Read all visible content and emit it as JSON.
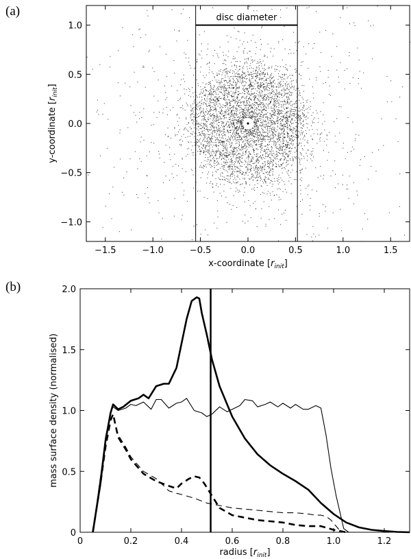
{
  "chart_data": [
    {
      "panel_label": "(a)",
      "type": "scatter",
      "xlabel": "x-coordinate",
      "ylabel": "y-coordinate",
      "unit_main": "r",
      "unit_sub": "init",
      "xlim": [
        -1.7,
        1.7
      ],
      "ylim": [
        -1.2,
        1.2
      ],
      "xticks": [
        -1.5,
        -1.0,
        -0.5,
        0.0,
        0.5,
        1.0,
        1.5
      ],
      "xtick_labels": [
        "−1.5",
        "−1.0",
        "−0.5",
        "0.0",
        "0.5",
        "1.0",
        "1.5"
      ],
      "yticks": [
        -1.0,
        -0.5,
        0.0,
        0.5,
        1.0
      ],
      "ytick_labels": [
        "−1.0",
        "−0.5",
        "0.0",
        "0.5",
        "1.0"
      ],
      "vertical_lines_x": [
        -0.55,
        0.52
      ],
      "annotation": {
        "text": "disc diameter",
        "x_from": -0.55,
        "x_to": 0.52,
        "y": 1.0
      },
      "distribution": {
        "ring_radius": 0.45,
        "ring_width": 0.12,
        "core_width": 0.35,
        "halo_width": 0.9,
        "n_points": 5200
      }
    },
    {
      "panel_label": "(b)",
      "type": "line",
      "xlabel": "radius",
      "ylabel": "mass surface density (normalised)",
      "unit_main": "r",
      "unit_sub": "init",
      "xlim": [
        0.0,
        1.3
      ],
      "ylim": [
        0.0,
        2.0
      ],
      "xticks": [
        0.0,
        0.2,
        0.4,
        0.6,
        0.8,
        1.0,
        1.2
      ],
      "xtick_labels": [
        "0",
        "0.2",
        "0.4",
        "0.6",
        "0.8",
        "1.0",
        "1.2"
      ],
      "yticks": [
        0.0,
        0.5,
        1.0,
        1.5,
        2.0
      ],
      "ytick_labels": [
        "0",
        "0.5",
        "1.0",
        "1.5",
        "2.0"
      ],
      "vertical_line_x": 0.515,
      "series": [
        {
          "style": "thick-solid",
          "x": [
            0.05,
            0.08,
            0.1,
            0.12,
            0.13,
            0.15,
            0.17,
            0.2,
            0.23,
            0.25,
            0.27,
            0.3,
            0.33,
            0.35,
            0.38,
            0.4,
            0.42,
            0.44,
            0.46,
            0.47,
            0.48,
            0.5,
            0.52,
            0.55,
            0.6,
            0.65,
            0.7,
            0.75,
            0.8,
            0.85,
            0.9,
            0.95,
            1.0,
            1.05,
            1.1,
            1.15,
            1.2,
            1.25,
            1.3
          ],
          "y": [
            0.0,
            0.4,
            0.75,
            0.98,
            1.05,
            1.01,
            1.03,
            1.08,
            1.1,
            1.13,
            1.1,
            1.2,
            1.22,
            1.22,
            1.35,
            1.55,
            1.75,
            1.9,
            1.93,
            1.92,
            1.8,
            1.62,
            1.42,
            1.2,
            0.95,
            0.77,
            0.64,
            0.55,
            0.48,
            0.42,
            0.35,
            0.24,
            0.15,
            0.08,
            0.04,
            0.02,
            0.01,
            0.003,
            0.0
          ]
        },
        {
          "style": "thin-solid",
          "x": [
            0.05,
            0.08,
            0.1,
            0.12,
            0.13,
            0.15,
            0.18,
            0.2,
            0.22,
            0.25,
            0.28,
            0.3,
            0.32,
            0.35,
            0.38,
            0.4,
            0.42,
            0.45,
            0.48,
            0.5,
            0.52,
            0.55,
            0.58,
            0.6,
            0.63,
            0.65,
            0.68,
            0.7,
            0.73,
            0.75,
            0.78,
            0.8,
            0.83,
            0.85,
            0.88,
            0.9,
            0.93,
            0.95,
            0.97,
            0.99,
            1.01,
            1.03,
            1.04,
            1.06
          ],
          "y": [
            0.0,
            0.45,
            0.78,
            0.98,
            1.03,
            1.0,
            1.02,
            1.05,
            1.04,
            1.07,
            1.01,
            1.09,
            1.09,
            1.02,
            1.06,
            1.07,
            1.1,
            1.0,
            0.98,
            0.95,
            0.97,
            1.03,
            0.99,
            1.01,
            1.04,
            1.09,
            1.08,
            1.03,
            1.05,
            1.07,
            1.03,
            1.06,
            1.02,
            1.05,
            1.01,
            1.01,
            1.04,
            1.02,
            0.8,
            0.52,
            0.3,
            0.12,
            0.03,
            0.0
          ]
        },
        {
          "style": "thick-dashed",
          "x": [
            0.05,
            0.08,
            0.1,
            0.12,
            0.13,
            0.15,
            0.18,
            0.2,
            0.25,
            0.3,
            0.35,
            0.38,
            0.4,
            0.43,
            0.45,
            0.47,
            0.49,
            0.52,
            0.55,
            0.6,
            0.65,
            0.7,
            0.75,
            0.8,
            0.85,
            0.9,
            0.95,
            1.0,
            1.05
          ],
          "y": [
            0.0,
            0.4,
            0.7,
            0.92,
            0.97,
            0.78,
            0.68,
            0.6,
            0.48,
            0.42,
            0.38,
            0.36,
            0.4,
            0.44,
            0.46,
            0.45,
            0.4,
            0.3,
            0.2,
            0.14,
            0.12,
            0.1,
            0.09,
            0.08,
            0.06,
            0.05,
            0.05,
            0.02,
            0.0
          ]
        },
        {
          "style": "thin-dashed",
          "x": [
            0.05,
            0.08,
            0.1,
            0.12,
            0.13,
            0.15,
            0.18,
            0.2,
            0.25,
            0.3,
            0.33,
            0.35,
            0.38,
            0.4,
            0.45,
            0.5,
            0.55,
            0.6,
            0.65,
            0.7,
            0.75,
            0.8,
            0.85,
            0.9,
            0.93,
            0.95,
            0.97,
            0.99,
            1.01,
            1.03
          ],
          "y": [
            0.0,
            0.45,
            0.75,
            0.93,
            0.97,
            0.8,
            0.7,
            0.62,
            0.5,
            0.44,
            0.38,
            0.34,
            0.32,
            0.31,
            0.28,
            0.24,
            0.22,
            0.2,
            0.19,
            0.18,
            0.17,
            0.16,
            0.16,
            0.15,
            0.14,
            0.14,
            0.13,
            0.1,
            0.05,
            0.0
          ]
        }
      ]
    }
  ]
}
